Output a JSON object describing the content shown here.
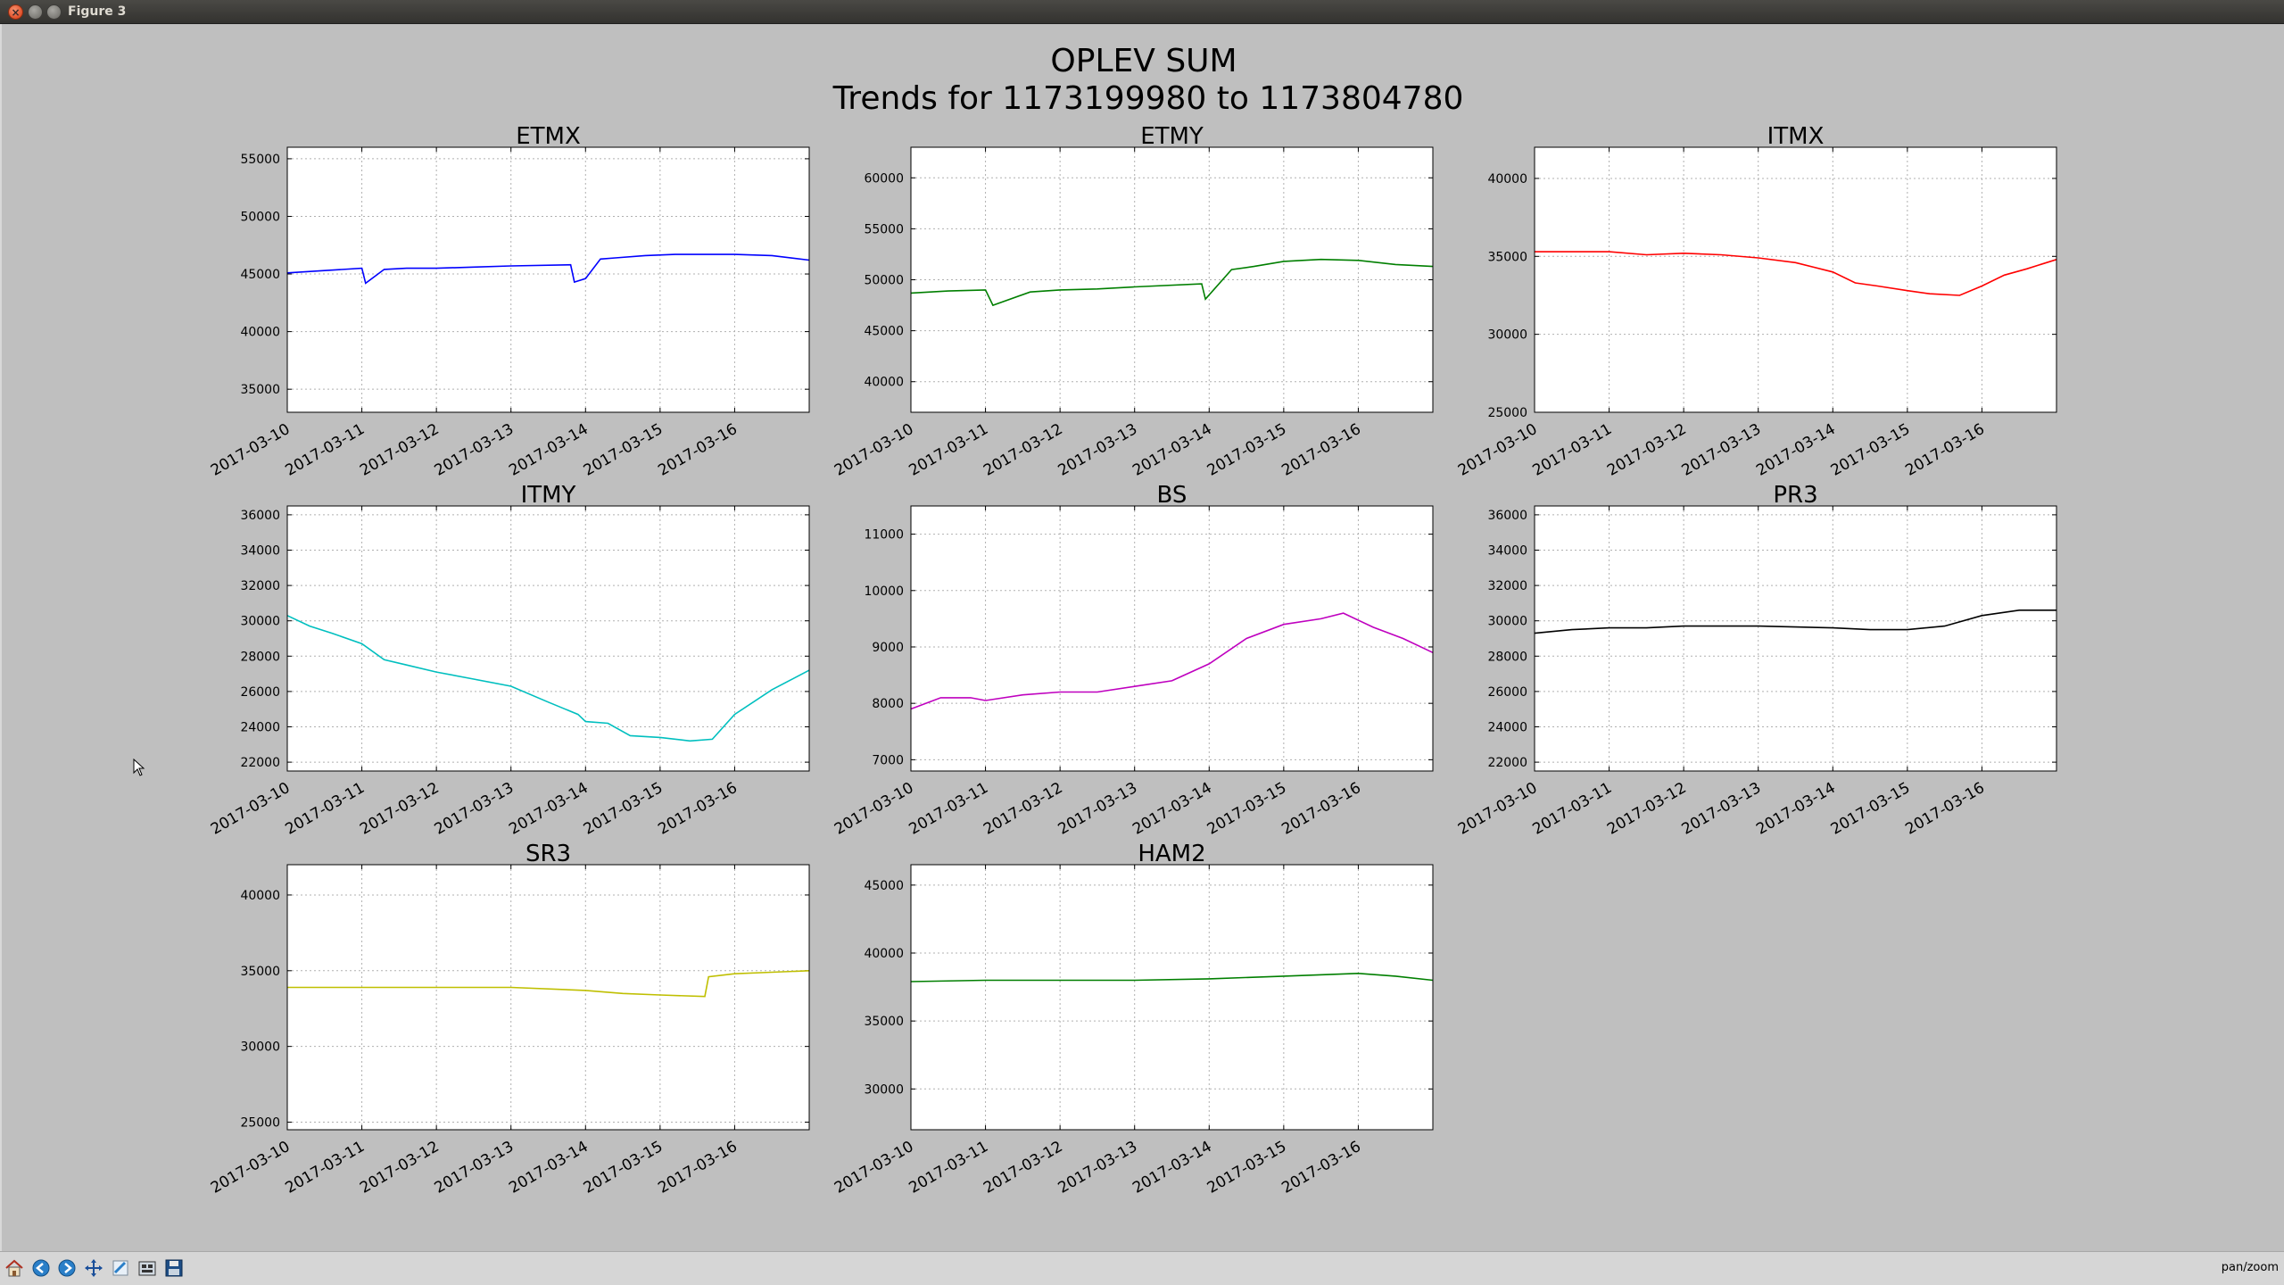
{
  "window": {
    "title": "Figure 3"
  },
  "figure": {
    "suptitle_line1": "OPLEV SUM",
    "suptitle_line2": "Trends for 1173199980 to 1173804780"
  },
  "x_tick_labels": [
    "2017-03-10",
    "2017-03-11",
    "2017-03-12",
    "2017-03-13",
    "2017-03-14",
    "2017-03-15",
    "2017-03-16"
  ],
  "chart_data": [
    {
      "type": "line",
      "title": "ETMX",
      "color": "#0000ff",
      "ylim": [
        33000,
        56000
      ],
      "yticks": [
        35000,
        40000,
        45000,
        50000,
        55000
      ],
      "xlim": [
        0,
        7
      ],
      "grid": true,
      "series": [
        {
          "x": [
            0,
            0.5,
            1.0,
            1.05,
            1.3,
            1.6,
            2.0,
            2.5,
            3.0,
            3.8,
            3.85,
            4.0,
            4.2,
            4.4,
            4.8,
            5.2,
            5.6,
            6.0,
            6.5,
            7.0
          ],
          "y": [
            45100,
            45300,
            45500,
            44200,
            45400,
            45500,
            45500,
            45600,
            45700,
            45800,
            44300,
            44600,
            46300,
            46400,
            46600,
            46700,
            46700,
            46700,
            46600,
            46200
          ]
        }
      ]
    },
    {
      "type": "line",
      "title": "ETMY",
      "color": "#007f00",
      "ylim": [
        37000,
        63000
      ],
      "yticks": [
        40000,
        45000,
        50000,
        55000,
        60000
      ],
      "xlim": [
        0,
        7
      ],
      "grid": true,
      "series": [
        {
          "x": [
            0,
            0.5,
            1.0,
            1.1,
            1.6,
            2.0,
            2.5,
            3.0,
            3.9,
            3.95,
            4.3,
            4.6,
            5.0,
            5.5,
            6.0,
            6.5,
            7.0
          ],
          "y": [
            48700,
            48900,
            49000,
            47500,
            48800,
            49000,
            49100,
            49300,
            49600,
            48100,
            51000,
            51300,
            51800,
            52000,
            51900,
            51500,
            51300
          ]
        }
      ]
    },
    {
      "type": "line",
      "title": "ITMX",
      "color": "#ff0000",
      "ylim": [
        25000,
        42000
      ],
      "yticks": [
        25000,
        30000,
        35000,
        40000
      ],
      "xlim": [
        0,
        7
      ],
      "grid": true,
      "series": [
        {
          "x": [
            0,
            0.5,
            1.0,
            1.5,
            2.0,
            2.5,
            3.0,
            3.5,
            4.0,
            4.3,
            4.6,
            5.0,
            5.3,
            5.7,
            6.0,
            6.3,
            6.6,
            7.0
          ],
          "y": [
            35300,
            35300,
            35300,
            35100,
            35200,
            35100,
            34900,
            34600,
            34000,
            33300,
            33100,
            32800,
            32600,
            32500,
            33100,
            33800,
            34200,
            34800
          ]
        }
      ]
    },
    {
      "type": "line",
      "title": "ITMY",
      "color": "#00bfbf",
      "ylim": [
        21500,
        36500
      ],
      "yticks": [
        22000,
        24000,
        26000,
        28000,
        30000,
        32000,
        34000,
        36000
      ],
      "xlim": [
        0,
        7
      ],
      "grid": true,
      "series": [
        {
          "x": [
            0,
            0.3,
            0.6,
            1.0,
            1.3,
            1.6,
            2.0,
            2.5,
            3.0,
            3.5,
            3.9,
            4.0,
            4.3,
            4.6,
            5.0,
            5.4,
            5.7,
            6.0,
            6.5,
            7.0
          ],
          "y": [
            30300,
            29700,
            29300,
            28700,
            27800,
            27500,
            27100,
            26700,
            26300,
            25400,
            24700,
            24300,
            24200,
            23500,
            23400,
            23200,
            23300,
            24700,
            26100,
            27200
          ]
        }
      ]
    },
    {
      "type": "line",
      "title": "BS",
      "color": "#bf00bf",
      "ylim": [
        6800,
        11500
      ],
      "yticks": [
        7000,
        8000,
        9000,
        10000,
        11000
      ],
      "xlim": [
        0,
        7
      ],
      "grid": true,
      "series": [
        {
          "x": [
            0,
            0.4,
            0.8,
            1.0,
            1.5,
            2.0,
            2.5,
            3.0,
            3.5,
            4.0,
            4.5,
            5.0,
            5.5,
            5.8,
            6.2,
            6.6,
            7.0
          ],
          "y": [
            7900,
            8100,
            8100,
            8050,
            8150,
            8200,
            8200,
            8300,
            8400,
            8700,
            9150,
            9400,
            9500,
            9600,
            9350,
            9150,
            8900
          ]
        }
      ]
    },
    {
      "type": "line",
      "title": "PR3",
      "color": "#000000",
      "ylim": [
        21500,
        36500
      ],
      "yticks": [
        22000,
        24000,
        26000,
        28000,
        30000,
        32000,
        34000,
        36000
      ],
      "xlim": [
        0,
        7
      ],
      "grid": true,
      "series": [
        {
          "x": [
            0,
            0.5,
            1.0,
            1.5,
            2.0,
            3.0,
            4.0,
            4.5,
            5.0,
            5.5,
            6.0,
            6.5,
            7.0
          ],
          "y": [
            29300,
            29500,
            29600,
            29600,
            29700,
            29700,
            29600,
            29500,
            29500,
            29700,
            30300,
            30600,
            30600
          ]
        }
      ]
    },
    {
      "type": "line",
      "title": "SR3",
      "color": "#bfbf00",
      "ylim": [
        24500,
        42000
      ],
      "yticks": [
        25000,
        30000,
        35000,
        40000
      ],
      "xlim": [
        0,
        7
      ],
      "grid": true,
      "series": [
        {
          "x": [
            0,
            1.0,
            2.0,
            3.0,
            4.0,
            4.5,
            5.0,
            5.6,
            5.65,
            6.0,
            6.5,
            7.0
          ],
          "y": [
            33900,
            33900,
            33900,
            33900,
            33700,
            33500,
            33400,
            33300,
            34600,
            34800,
            34900,
            35000
          ]
        }
      ]
    },
    {
      "type": "line",
      "title": "HAM2",
      "color": "#007f00",
      "ylim": [
        27000,
        46500
      ],
      "yticks": [
        30000,
        35000,
        40000,
        45000
      ],
      "xlim": [
        0,
        7
      ],
      "grid": true,
      "series": [
        {
          "x": [
            0,
            1.0,
            2.0,
            3.0,
            4.0,
            5.0,
            6.0,
            6.5,
            7.0
          ],
          "y": [
            37900,
            38000,
            38000,
            38000,
            38100,
            38300,
            38500,
            38300,
            38000
          ]
        }
      ]
    }
  ],
  "toolbar": {
    "buttons": [
      "home-icon",
      "back-icon",
      "forward-icon",
      "pan-icon",
      "zoom-icon",
      "subplots-icon",
      "save-icon"
    ],
    "status": "pan/zoom"
  }
}
